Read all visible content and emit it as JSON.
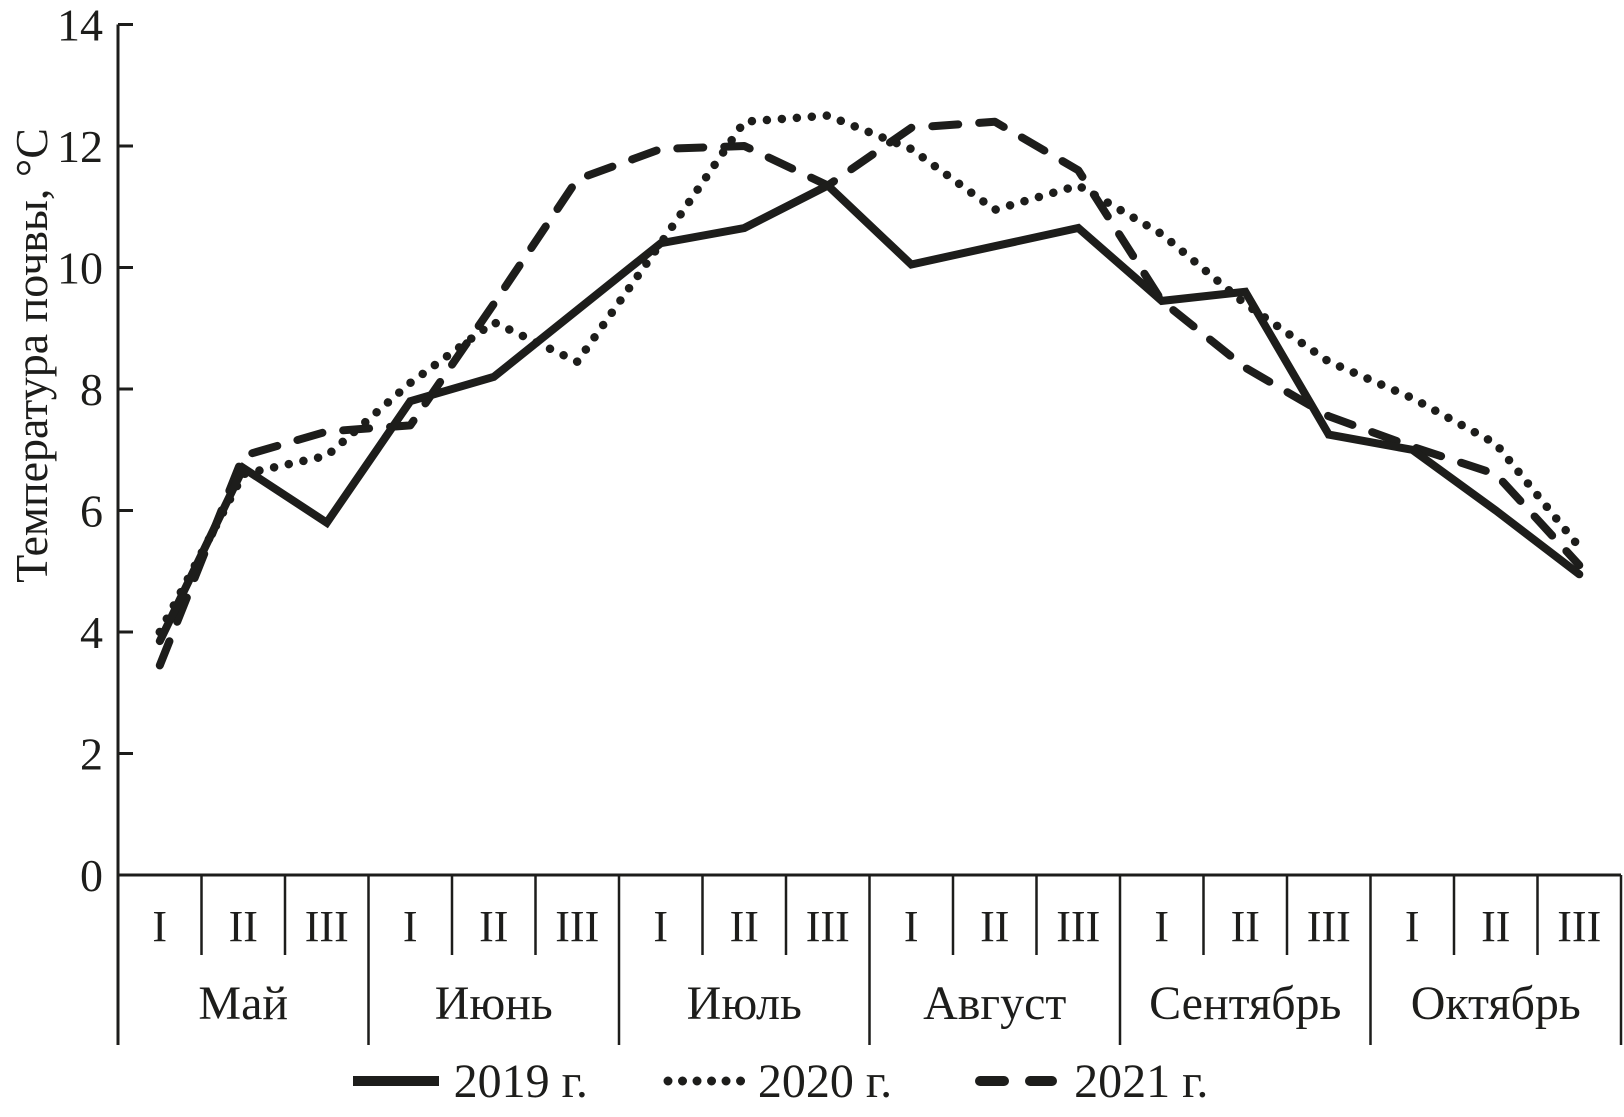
{
  "colors": {
    "line": "#1d1d1b",
    "background": "#ffffff"
  },
  "chart_data": {
    "type": "line",
    "title": "",
    "ylabel": "Температура почвы, °C",
    "xlabel": "",
    "ylim": [
      0,
      14
    ],
    "yticks": [
      0,
      2,
      4,
      6,
      8,
      10,
      12,
      14
    ],
    "grid": false,
    "legend_position": "bottom",
    "x_months": [
      "Май",
      "Июнь",
      "Июль",
      "Август",
      "Сентябрь",
      "Октябрь"
    ],
    "x_decades": [
      "I",
      "II",
      "III"
    ],
    "x_labels": [
      "I",
      "II",
      "III",
      "I",
      "II",
      "III",
      "I",
      "II",
      "III",
      "I",
      "II",
      "III",
      "I",
      "II",
      "III",
      "I",
      "II",
      "III"
    ],
    "series": [
      {
        "name": "2019 г.",
        "style": "solid",
        "values": [
          3.85,
          6.7,
          5.8,
          7.8,
          8.2,
          9.3,
          10.4,
          10.65,
          11.35,
          10.05,
          10.35,
          10.65,
          9.45,
          9.6,
          7.25,
          7.0,
          6.0,
          4.95
        ]
      },
      {
        "name": "2020 г.",
        "style": "dotted",
        "values": [
          4.0,
          6.6,
          6.9,
          8.1,
          9.1,
          8.45,
          10.4,
          12.4,
          12.5,
          11.95,
          10.95,
          11.35,
          10.55,
          9.4,
          8.45,
          7.85,
          7.1,
          5.4
        ]
      },
      {
        "name": "2021 г.",
        "style": "dashed",
        "values": [
          3.45,
          6.9,
          7.3,
          7.4,
          9.4,
          11.45,
          11.95,
          12.0,
          11.35,
          12.3,
          12.4,
          11.6,
          9.45,
          8.35,
          7.55,
          7.05,
          6.6,
          5.1
        ]
      }
    ]
  },
  "legend": {
    "items": [
      {
        "label": "2019 г."
      },
      {
        "label": "2020 г."
      },
      {
        "label": "2021 г."
      }
    ]
  }
}
